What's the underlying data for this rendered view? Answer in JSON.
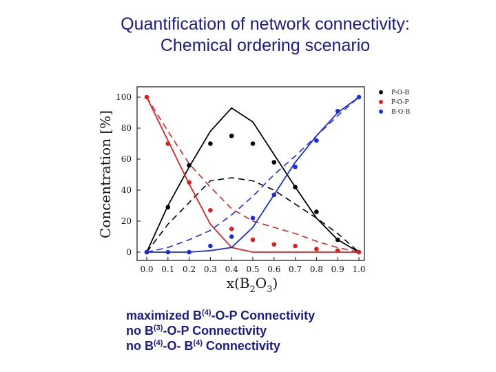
{
  "title": {
    "line1": "Quantification of network connectivity:",
    "line2": "Chemical ordering scenario"
  },
  "colors": {
    "title": "#1a1a8c",
    "P-O-B": "#000000",
    "P-O-P": "#e02020",
    "B-O-B": "#1a2ee0"
  },
  "chart_data": {
    "type": "line",
    "xlabel": "x(B2O3)",
    "xlabel_parts": {
      "main": "x(B",
      "sub1": "2",
      "mid": "O",
      "sub2": "3",
      "end": ")"
    },
    "ylabel": "Concentration [%]",
    "xlim": [
      0,
      1.0
    ],
    "ylim": [
      0,
      100
    ],
    "xticks": [
      "0.0",
      "0.1",
      "0.2",
      "0.3",
      "0.4",
      "0.5",
      "0.6",
      "0.7",
      "0.8",
      "0.9",
      "1.0"
    ],
    "yticks": [
      "0",
      "20",
      "40",
      "60",
      "80",
      "100"
    ],
    "legend_position": "top-right",
    "legend": [
      "P-O-B",
      "P-O-P",
      "B-O-B"
    ],
    "series": [
      {
        "name": "P-O-B",
        "points_x": [
          0.0,
          0.1,
          0.2,
          0.3,
          0.4,
          0.5,
          0.6,
          0.7,
          0.8,
          0.9,
          1.0
        ],
        "points_y": [
          0,
          29,
          56,
          70,
          75,
          70,
          58,
          42,
          26,
          8,
          0
        ],
        "solid": {
          "x": [
            0.0,
            0.1,
            0.2,
            0.3,
            0.4,
            0.5,
            0.6,
            0.7,
            0.8,
            0.9,
            1.0
          ],
          "y": [
            0,
            30,
            55,
            78,
            93,
            84,
            63,
            42,
            22,
            8,
            0
          ]
        },
        "dashed": {
          "x": [
            0.0,
            0.1,
            0.2,
            0.3,
            0.4,
            0.5,
            0.6,
            0.7,
            0.8,
            0.9,
            1.0
          ],
          "y": [
            0,
            18,
            32,
            46,
            48,
            46,
            40,
            31,
            22,
            12,
            0
          ]
        }
      },
      {
        "name": "P-O-P",
        "points_x": [
          0.0,
          0.1,
          0.2,
          0.3,
          0.4,
          0.5,
          0.6,
          0.7,
          0.8,
          0.9,
          1.0
        ],
        "points_y": [
          100,
          70,
          45,
          27,
          15,
          8,
          5,
          4,
          2,
          1,
          0
        ],
        "solid": {
          "x": [
            0.0,
            0.1,
            0.2,
            0.3,
            0.4,
            0.5,
            0.6,
            0.7,
            0.8,
            0.9,
            1.0
          ],
          "y": [
            100,
            72,
            44,
            18,
            3,
            0,
            0,
            0,
            0,
            0,
            0
          ]
        },
        "dashed": {
          "x": [
            0.0,
            0.1,
            0.2,
            0.3,
            0.4,
            0.5,
            0.6,
            0.7,
            0.8,
            0.9,
            1.0
          ],
          "y": [
            100,
            78,
            57,
            42,
            28,
            20,
            16,
            12,
            7,
            3,
            0
          ]
        }
      },
      {
        "name": "B-O-B",
        "points_x": [
          0.0,
          0.1,
          0.2,
          0.3,
          0.4,
          0.5,
          0.6,
          0.7,
          0.8,
          0.9,
          1.0
        ],
        "points_y": [
          0,
          0,
          0,
          4,
          10,
          22,
          37,
          55,
          72,
          91,
          100
        ],
        "solid": {
          "x": [
            0.0,
            0.1,
            0.2,
            0.3,
            0.4,
            0.5,
            0.6,
            0.7,
            0.8,
            0.9,
            1.0
          ],
          "y": [
            0,
            0,
            0,
            1,
            3,
            16,
            37,
            58,
            75,
            90,
            100
          ]
        },
        "dashed": {
          "x": [
            0.0,
            0.1,
            0.2,
            0.3,
            0.4,
            0.5,
            0.6,
            0.7,
            0.8,
            0.9,
            1.0
          ],
          "y": [
            0,
            3,
            8,
            14,
            24,
            36,
            50,
            62,
            75,
            88,
            100
          ]
        }
      }
    ]
  },
  "notes": {
    "line1": {
      "pre": "maximized B",
      "sup": "(4)",
      "post": "-O-P Connectivity"
    },
    "line2": {
      "pre": "no B",
      "sup": "(3)",
      "post": "-O-P Connectivity"
    },
    "line3": {
      "pre": "no B",
      "sup1": "(4)",
      "mid": "-O- B",
      "sup2": "(4)",
      "post": " Connectivity"
    }
  }
}
